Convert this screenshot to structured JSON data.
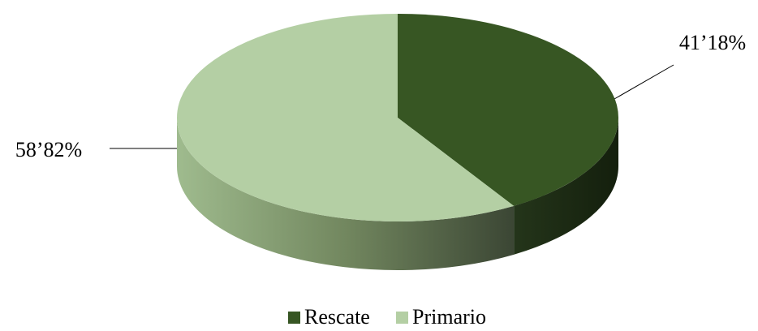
{
  "chart_data": {
    "type": "pie",
    "categories": [
      "Rescate",
      "Primario"
    ],
    "values": [
      41.18,
      58.82
    ],
    "value_labels": [
      "41’18%",
      "58’82%"
    ],
    "colors": [
      "#375623",
      "#b4cfa4"
    ]
  }
}
